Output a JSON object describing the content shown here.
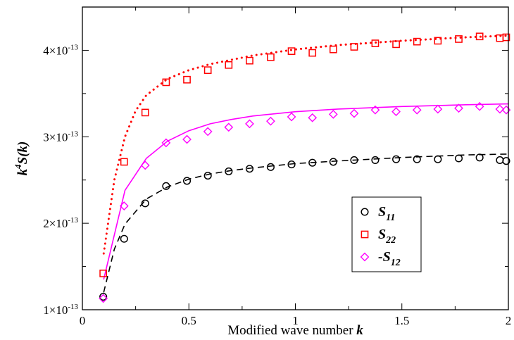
{
  "chart_data": {
    "type": "scatter",
    "xlabel": "Modified wave number k",
    "ylabel": "k^4 S(k)",
    "xlim": [
      0,
      2
    ],
    "ylim": [
      1e-13,
      4.5e-13
    ],
    "x_ticks": [
      0,
      0.5,
      1,
      1.5,
      2
    ],
    "x_tick_labels": [
      "0",
      "0.5",
      "1",
      "1.5",
      "2"
    ],
    "y_ticks": [
      1e-13,
      2e-13,
      3e-13,
      4e-13
    ],
    "y_tick_labels": [
      {
        "mantissa": "1×10",
        "exp": "-13"
      },
      {
        "mantissa": "2×10",
        "exp": "-13"
      },
      {
        "mantissa": "3×10",
        "exp": "-13"
      },
      {
        "mantissa": "4×10",
        "exp": "-13"
      }
    ],
    "legend_position": "lower-right",
    "series": [
      {
        "name": "S11",
        "label_main": "S",
        "label_sub": "11",
        "marker": "circle",
        "color": "#000000",
        "x": [
          0.098,
          0.196,
          0.295,
          0.393,
          0.491,
          0.589,
          0.687,
          0.785,
          0.884,
          0.982,
          1.08,
          1.178,
          1.276,
          1.375,
          1.473,
          1.571,
          1.669,
          1.767,
          1.865,
          1.96,
          1.99
        ],
        "y": [
          1.15e-13,
          1.82e-13,
          2.23e-13,
          2.43e-13,
          2.49e-13,
          2.55e-13,
          2.6e-13,
          2.63e-13,
          2.65e-13,
          2.68e-13,
          2.7e-13,
          2.71e-13,
          2.73e-13,
          2.73e-13,
          2.74e-13,
          2.74e-13,
          2.74e-13,
          2.75e-13,
          2.76e-13,
          2.73e-13,
          2.72e-13
        ]
      },
      {
        "name": "S22",
        "label_main": "S",
        "label_sub": "22",
        "marker": "square",
        "color": "#ff0000",
        "x": [
          0.098,
          0.196,
          0.295,
          0.393,
          0.491,
          0.589,
          0.687,
          0.785,
          0.884,
          0.982,
          1.08,
          1.178,
          1.276,
          1.375,
          1.473,
          1.571,
          1.669,
          1.767,
          1.865,
          1.96,
          1.99
        ],
        "y": [
          1.42e-13,
          2.71e-13,
          3.28e-13,
          3.63e-13,
          3.66e-13,
          3.77e-13,
          3.83e-13,
          3.88e-13,
          3.92e-13,
          3.99e-13,
          3.97e-13,
          4.01e-13,
          4.04e-13,
          4.08e-13,
          4.07e-13,
          4.1e-13,
          4.11e-13,
          4.13e-13,
          4.16e-13,
          4.14e-13,
          4.15e-13
        ]
      },
      {
        "name": "-S12",
        "label_main": "-S",
        "label_sub": "12",
        "marker": "diamond",
        "color": "#ff00ff",
        "x": [
          0.098,
          0.196,
          0.295,
          0.393,
          0.491,
          0.589,
          0.687,
          0.785,
          0.884,
          0.982,
          1.08,
          1.178,
          1.276,
          1.375,
          1.473,
          1.571,
          1.669,
          1.767,
          1.865,
          1.96,
          1.99
        ],
        "y": [
          1.13e-13,
          2.2e-13,
          2.67e-13,
          2.93e-13,
          2.97e-13,
          3.06e-13,
          3.11e-13,
          3.15e-13,
          3.18e-13,
          3.23e-13,
          3.22e-13,
          3.26e-13,
          3.27e-13,
          3.31e-13,
          3.29e-13,
          3.31e-13,
          3.32e-13,
          3.33e-13,
          3.35e-13,
          3.32e-13,
          3.31e-13
        ]
      }
    ],
    "curves": [
      {
        "style": "dashed",
        "color": "#000000",
        "x": [
          0.1,
          0.15,
          0.2,
          0.3,
          0.4,
          0.5,
          0.6,
          0.7,
          0.8,
          1.0,
          1.2,
          1.5,
          1.8,
          2.0
        ],
        "y": [
          1.2e-13,
          1.7e-13,
          1.99e-13,
          2.28e-13,
          2.42e-13,
          2.51e-13,
          2.57e-13,
          2.61e-13,
          2.64e-13,
          2.69e-13,
          2.72e-13,
          2.76e-13,
          2.79e-13,
          2.8e-13
        ]
      },
      {
        "style": "dotted",
        "color": "#ff0000",
        "x": [
          0.1,
          0.15,
          0.2,
          0.25,
          0.3,
          0.4,
          0.5,
          0.6,
          0.7,
          0.8,
          1.0,
          1.2,
          1.5,
          1.8,
          2.0
        ],
        "y": [
          1.65e-13,
          2.5e-13,
          3e-13,
          3.3e-13,
          3.48e-13,
          3.67e-13,
          3.77e-13,
          3.84e-13,
          3.89e-13,
          3.94e-13,
          4.01e-13,
          4.06e-13,
          4.11e-13,
          4.15e-13,
          4.17e-13
        ]
      },
      {
        "style": "solid",
        "color": "#ff00ff",
        "x": [
          0.1,
          0.2,
          0.3,
          0.4,
          0.5,
          0.6,
          0.7,
          0.8,
          1.0,
          1.2,
          1.5,
          1.8,
          2.0
        ],
        "y": [
          1.35e-13,
          2.38e-13,
          2.75e-13,
          2.95e-13,
          3.07e-13,
          3.15e-13,
          3.2e-13,
          3.24e-13,
          3.29e-13,
          3.32e-13,
          3.35e-13,
          3.37e-13,
          3.38e-13
        ]
      }
    ]
  }
}
